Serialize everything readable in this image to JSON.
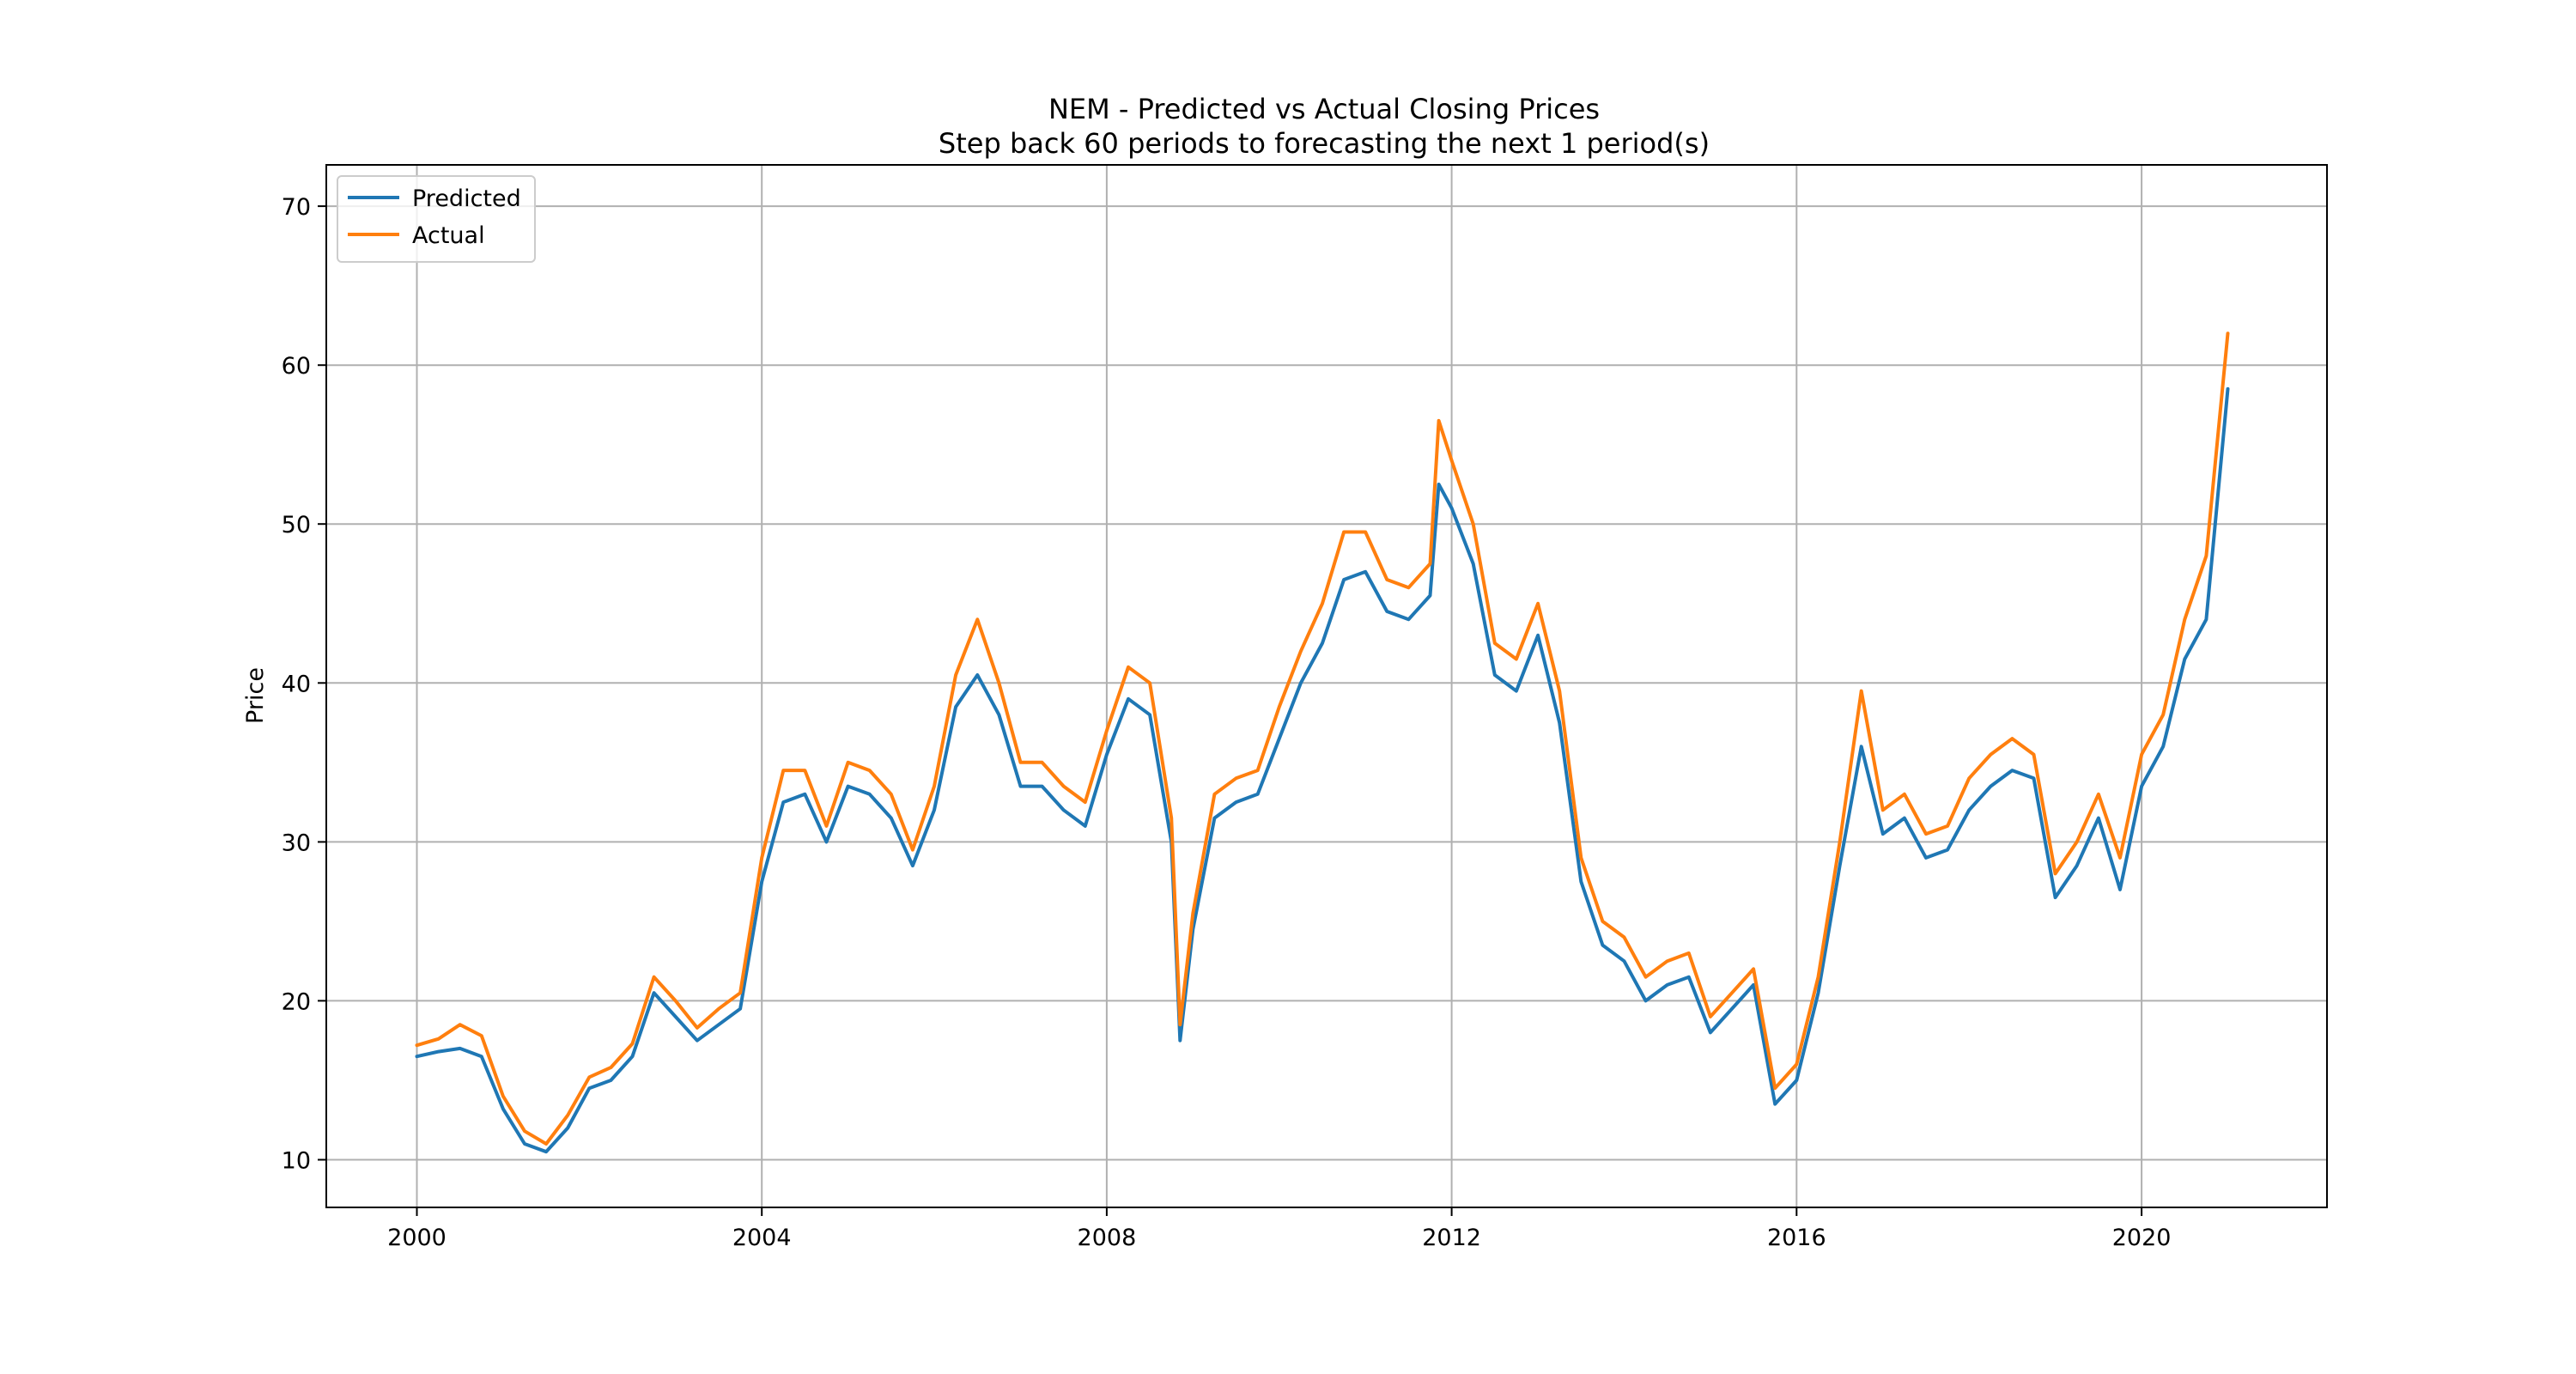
{
  "chart_data": {
    "type": "line",
    "title": "NEM - Predicted vs Actual Closing Prices",
    "subtitle": "Step back 60 periods to forecasting the next 1 period(s)",
    "xlabel": "",
    "ylabel": "Price",
    "x_ticks": [
      2000,
      2004,
      2008,
      2012,
      2016,
      2020
    ],
    "y_ticks": [
      10,
      20,
      30,
      40,
      50,
      60,
      70
    ],
    "xlim": [
      1998.95,
      2022.15
    ],
    "ylim": [
      7.0,
      72.6
    ],
    "grid": true,
    "legend_position": "top-left",
    "x": [
      2000.0,
      2000.25,
      2000.5,
      2000.75,
      2001.0,
      2001.25,
      2001.5,
      2001.75,
      2002.0,
      2002.25,
      2002.5,
      2002.75,
      2003.0,
      2003.25,
      2003.5,
      2003.75,
      2004.0,
      2004.25,
      2004.5,
      2004.75,
      2005.0,
      2005.25,
      2005.5,
      2005.75,
      2006.0,
      2006.25,
      2006.5,
      2006.75,
      2007.0,
      2007.25,
      2007.5,
      2007.75,
      2008.0,
      2008.25,
      2008.5,
      2008.75,
      2008.85,
      2009.0,
      2009.25,
      2009.5,
      2009.75,
      2010.0,
      2010.25,
      2010.5,
      2010.75,
      2011.0,
      2011.25,
      2011.5,
      2011.75,
      2011.85,
      2012.0,
      2012.25,
      2012.5,
      2012.75,
      2013.0,
      2013.25,
      2013.5,
      2013.75,
      2014.0,
      2014.25,
      2014.5,
      2014.75,
      2015.0,
      2015.25,
      2015.5,
      2015.75,
      2016.0,
      2016.25,
      2016.5,
      2016.75,
      2017.0,
      2017.25,
      2017.5,
      2017.75,
      2018.0,
      2018.25,
      2018.5,
      2018.75,
      2019.0,
      2019.25,
      2019.5,
      2019.75,
      2020.0,
      2020.25,
      2020.5,
      2020.75,
      2021.0
    ],
    "series": [
      {
        "name": "Predicted",
        "color": "#1f77b4",
        "values": [
          16.5,
          16.8,
          17.0,
          16.5,
          13.2,
          11.0,
          10.5,
          12.0,
          14.5,
          15.0,
          16.5,
          20.5,
          19.0,
          17.5,
          18.5,
          19.5,
          27.5,
          32.5,
          33.0,
          30.0,
          33.5,
          33.0,
          31.5,
          28.5,
          32.0,
          38.5,
          40.5,
          38.0,
          33.5,
          33.5,
          32.0,
          31.0,
          35.5,
          39.0,
          38.0,
          30.0,
          17.5,
          24.5,
          31.5,
          32.5,
          33.0,
          36.5,
          40.0,
          42.5,
          46.5,
          47.0,
          44.5,
          44.0,
          45.5,
          52.5,
          51.0,
          47.5,
          40.5,
          39.5,
          43.0,
          37.5,
          27.5,
          23.5,
          22.5,
          20.0,
          21.0,
          21.5,
          18.0,
          19.5,
          21.0,
          13.5,
          15.0,
          20.5,
          28.5,
          36.0,
          30.5,
          31.5,
          29.0,
          29.5,
          32.0,
          33.5,
          34.5,
          34.0,
          26.5,
          28.5,
          31.5,
          27.0,
          33.5,
          36.0,
          41.5,
          44.0,
          58.5
        ]
      },
      {
        "name": "Actual",
        "color": "#ff7f0e",
        "values": [
          17.2,
          17.6,
          18.5,
          17.8,
          14.0,
          11.8,
          11.0,
          12.8,
          15.2,
          15.8,
          17.3,
          21.5,
          20.0,
          18.3,
          19.5,
          20.5,
          29.0,
          34.5,
          34.5,
          31.0,
          35.0,
          34.5,
          33.0,
          29.5,
          33.5,
          40.5,
          44.0,
          40.0,
          35.0,
          35.0,
          33.5,
          32.5,
          37.0,
          41.0,
          40.0,
          31.5,
          18.5,
          25.5,
          33.0,
          34.0,
          34.5,
          38.5,
          42.0,
          45.0,
          49.5,
          49.5,
          46.5,
          46.0,
          47.5,
          56.5,
          54.0,
          50.0,
          42.5,
          41.5,
          45.0,
          39.5,
          29.0,
          25.0,
          24.0,
          21.5,
          22.5,
          23.0,
          19.0,
          20.5,
          22.0,
          14.5,
          16.0,
          21.5,
          30.0,
          39.5,
          32.0,
          33.0,
          30.5,
          31.0,
          34.0,
          35.5,
          36.5,
          35.5,
          28.0,
          30.0,
          33.0,
          29.0,
          35.5,
          38.0,
          44.0,
          48.0,
          62.0
        ]
      }
    ]
  }
}
